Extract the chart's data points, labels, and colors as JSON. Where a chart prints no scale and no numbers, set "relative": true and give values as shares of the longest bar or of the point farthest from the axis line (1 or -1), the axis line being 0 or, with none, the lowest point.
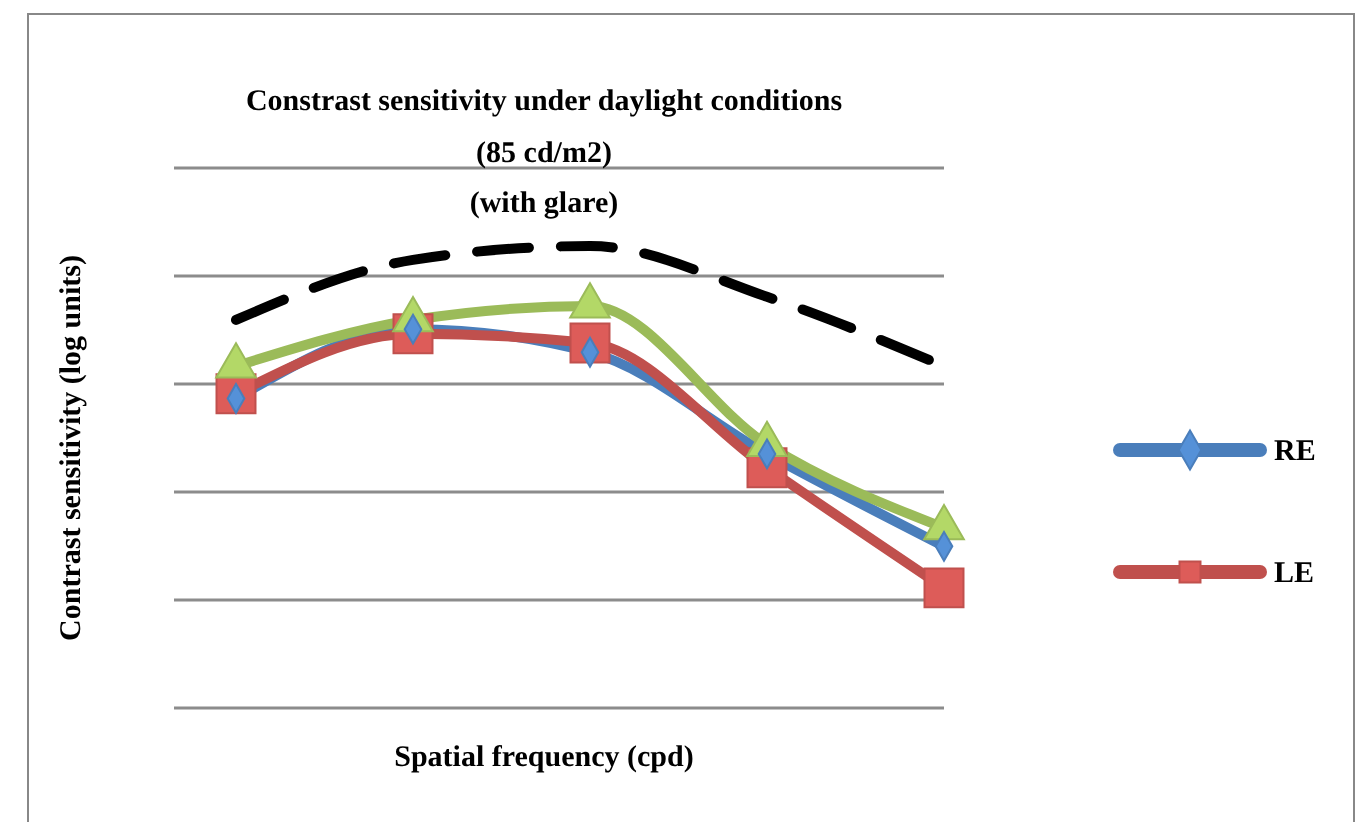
{
  "chart_data": {
    "type": "line",
    "title": "Constrast sensitivity under daylight conditions",
    "subtitle": "(85 cd/m2)\n(with glare)",
    "xlabel": "Spatial frequency (cpd)",
    "ylabel": "Contrast sensitivity (log units)",
    "relative": true,
    "grid": "y",
    "legend": "right",
    "categories": [
      null,
      null,
      null,
      null,
      null
    ],
    "series": [
      {
        "name": "RE",
        "color": "#4a7ebb",
        "marker": "diamond",
        "values": [
          0.67,
          0.82,
          0.77,
          0.55,
          0.35
        ]
      },
      {
        "name": "LE",
        "color": "#c0504d",
        "marker": "square",
        "values": [
          0.68,
          0.81,
          0.79,
          0.52,
          0.26
        ]
      },
      {
        "color": "#9bbb59",
        "marker": "triangle",
        "values": [
          0.74,
          0.84,
          0.87,
          0.57,
          0.39
        ]
      },
      {
        "color": "#000000",
        "marker": "none",
        "line_style": "dashed",
        "values": [
          0.84,
          0.97,
          1,
          0.89,
          0.74
        ]
      }
    ]
  }
}
